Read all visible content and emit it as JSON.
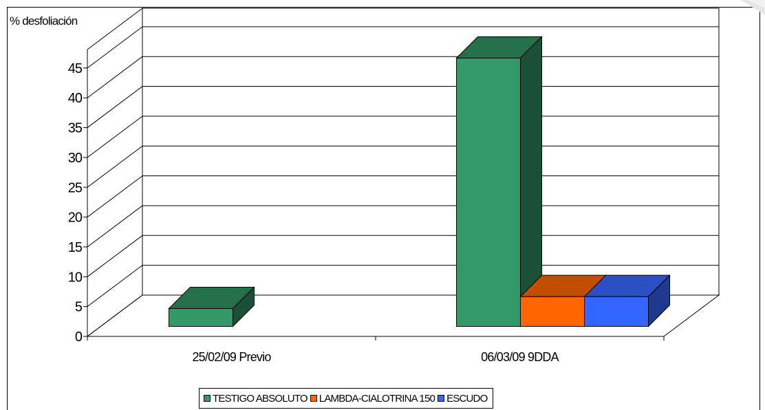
{
  "chart_data": {
    "type": "bar",
    "ylabel": "% desfoliación",
    "ylim": [
      0,
      45
    ],
    "yticks": [
      0,
      5,
      10,
      15,
      20,
      25,
      30,
      35,
      40,
      45
    ],
    "categories": [
      "25/02/09 Previo",
      "06/03/09 9DDA"
    ],
    "series": [
      {
        "name": "TESTIGO ABSOLUTO",
        "values": [
          3,
          45
        ],
        "color": "#339966",
        "top_color": "#256f4a",
        "side_color": "#1b5037"
      },
      {
        "name": "LAMBDA-CIALOTRINA 150",
        "values": [
          0,
          5
        ],
        "color": "#ff6600",
        "top_color": "#c24f00",
        "side_color": "#8f3a00"
      },
      {
        "name": "ESCUDO",
        "values": [
          0,
          5
        ],
        "color": "#3366ff",
        "top_color": "#2a50c4",
        "side_color": "#1e3a8f"
      }
    ],
    "grid": true,
    "legend_position": "bottom",
    "style": "3d"
  }
}
